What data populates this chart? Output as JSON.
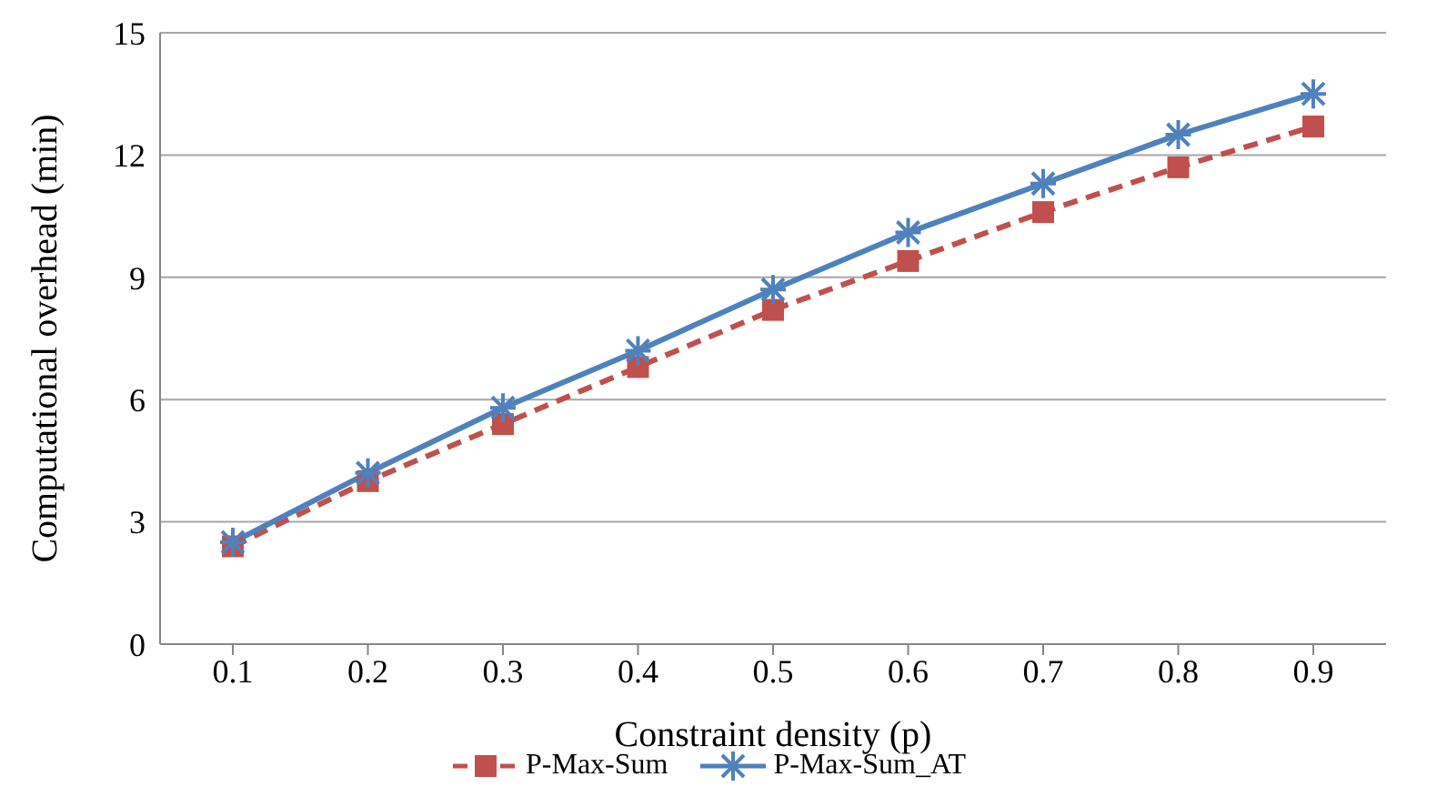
{
  "chart_data": {
    "type": "line",
    "xlabel": "Constraint density (p)",
    "ylabel": "Computational overhead (min)",
    "categories": [
      "0.1",
      "0.2",
      "0.3",
      "0.4",
      "0.5",
      "0.6",
      "0.7",
      "0.8",
      "0.9"
    ],
    "series": [
      {
        "name": "P-Max-Sum",
        "color": "#c0504d",
        "marker": "square",
        "line_style": "dashed",
        "values": [
          2.4,
          4.0,
          5.4,
          6.8,
          8.2,
          9.4,
          10.6,
          11.7,
          12.7
        ]
      },
      {
        "name": "P-Max-Sum_AT",
        "color": "#4f81bd",
        "marker": "cross",
        "line_style": "solid",
        "values": [
          2.5,
          4.2,
          5.8,
          7.2,
          8.7,
          10.1,
          11.3,
          12.5,
          13.5
        ]
      }
    ],
    "ylim": [
      0,
      15
    ],
    "yticks": [
      0,
      3,
      6,
      9,
      12,
      15
    ],
    "grid": "y",
    "legend": "bottom"
  }
}
